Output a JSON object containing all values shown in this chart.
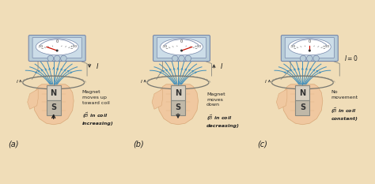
{
  "bg_color": "#f0ddb8",
  "panel_labels": [
    "(a)",
    "(b)",
    "(c)"
  ],
  "annotations_a": [
    "Magnet",
    "moves up",
    "toward coil",
    "($\\vec{B}$ in coil",
    "increasing)"
  ],
  "annotations_b": [
    "Magnet",
    "moves",
    "down",
    "($\\vec{B}$ in coil",
    "decreasing)"
  ],
  "annotations_c": [
    "No",
    "movement",
    "($\\vec{B}$ in coil",
    "constant)"
  ],
  "meter_color": "#b8ccd8",
  "meter_color2": "#ccdde8",
  "meter_border": "#7788aa",
  "magnet_n_color": "#d8cfc0",
  "magnet_s_color": "#c0b8a8",
  "magnet_border": "#888880",
  "field_color": "#3388bb",
  "hand_color_light": "#f0c8a0",
  "hand_color_dark": "#d8a878",
  "needle_angles": [
    40,
    -40,
    0
  ],
  "wire_color": "#888880",
  "coil_color": "#777770",
  "text_color": "#222222",
  "n_field_lines": 11
}
